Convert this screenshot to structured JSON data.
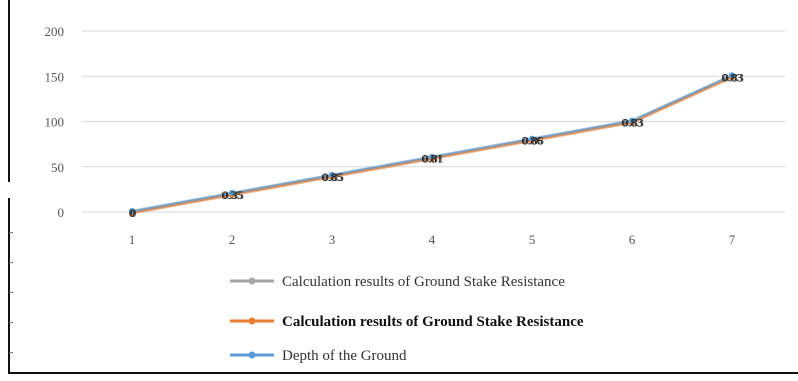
{
  "chart_data": {
    "type": "line",
    "categories": [
      "1",
      "2",
      "3",
      "4",
      "5",
      "6",
      "7"
    ],
    "ylim": [
      0,
      200
    ],
    "yticks": [
      "0",
      "50",
      "100",
      "150",
      "200"
    ],
    "grid": true,
    "legend_placement": "bottom",
    "series": [
      {
        "name": "Calculation results of Ground Stake Resistance",
        "color": "#a6a6a6",
        "values": [
          0,
          20,
          40,
          60,
          80,
          100,
          150
        ]
      },
      {
        "name": "Calculation results of Ground Stake Resistance",
        "color": "#ed7d31",
        "bold": true,
        "values": [
          0,
          20,
          40,
          60,
          80,
          100,
          150
        ]
      },
      {
        "name": "Depth of the Ground",
        "color": "#5b9bd5",
        "values": [
          0,
          20,
          40,
          60,
          80,
          100,
          150
        ]
      }
    ],
    "data_labels": [
      "0",
      "0.35",
      "0.85",
      "0.81",
      "0.86",
      "0.83",
      "0.83"
    ]
  }
}
